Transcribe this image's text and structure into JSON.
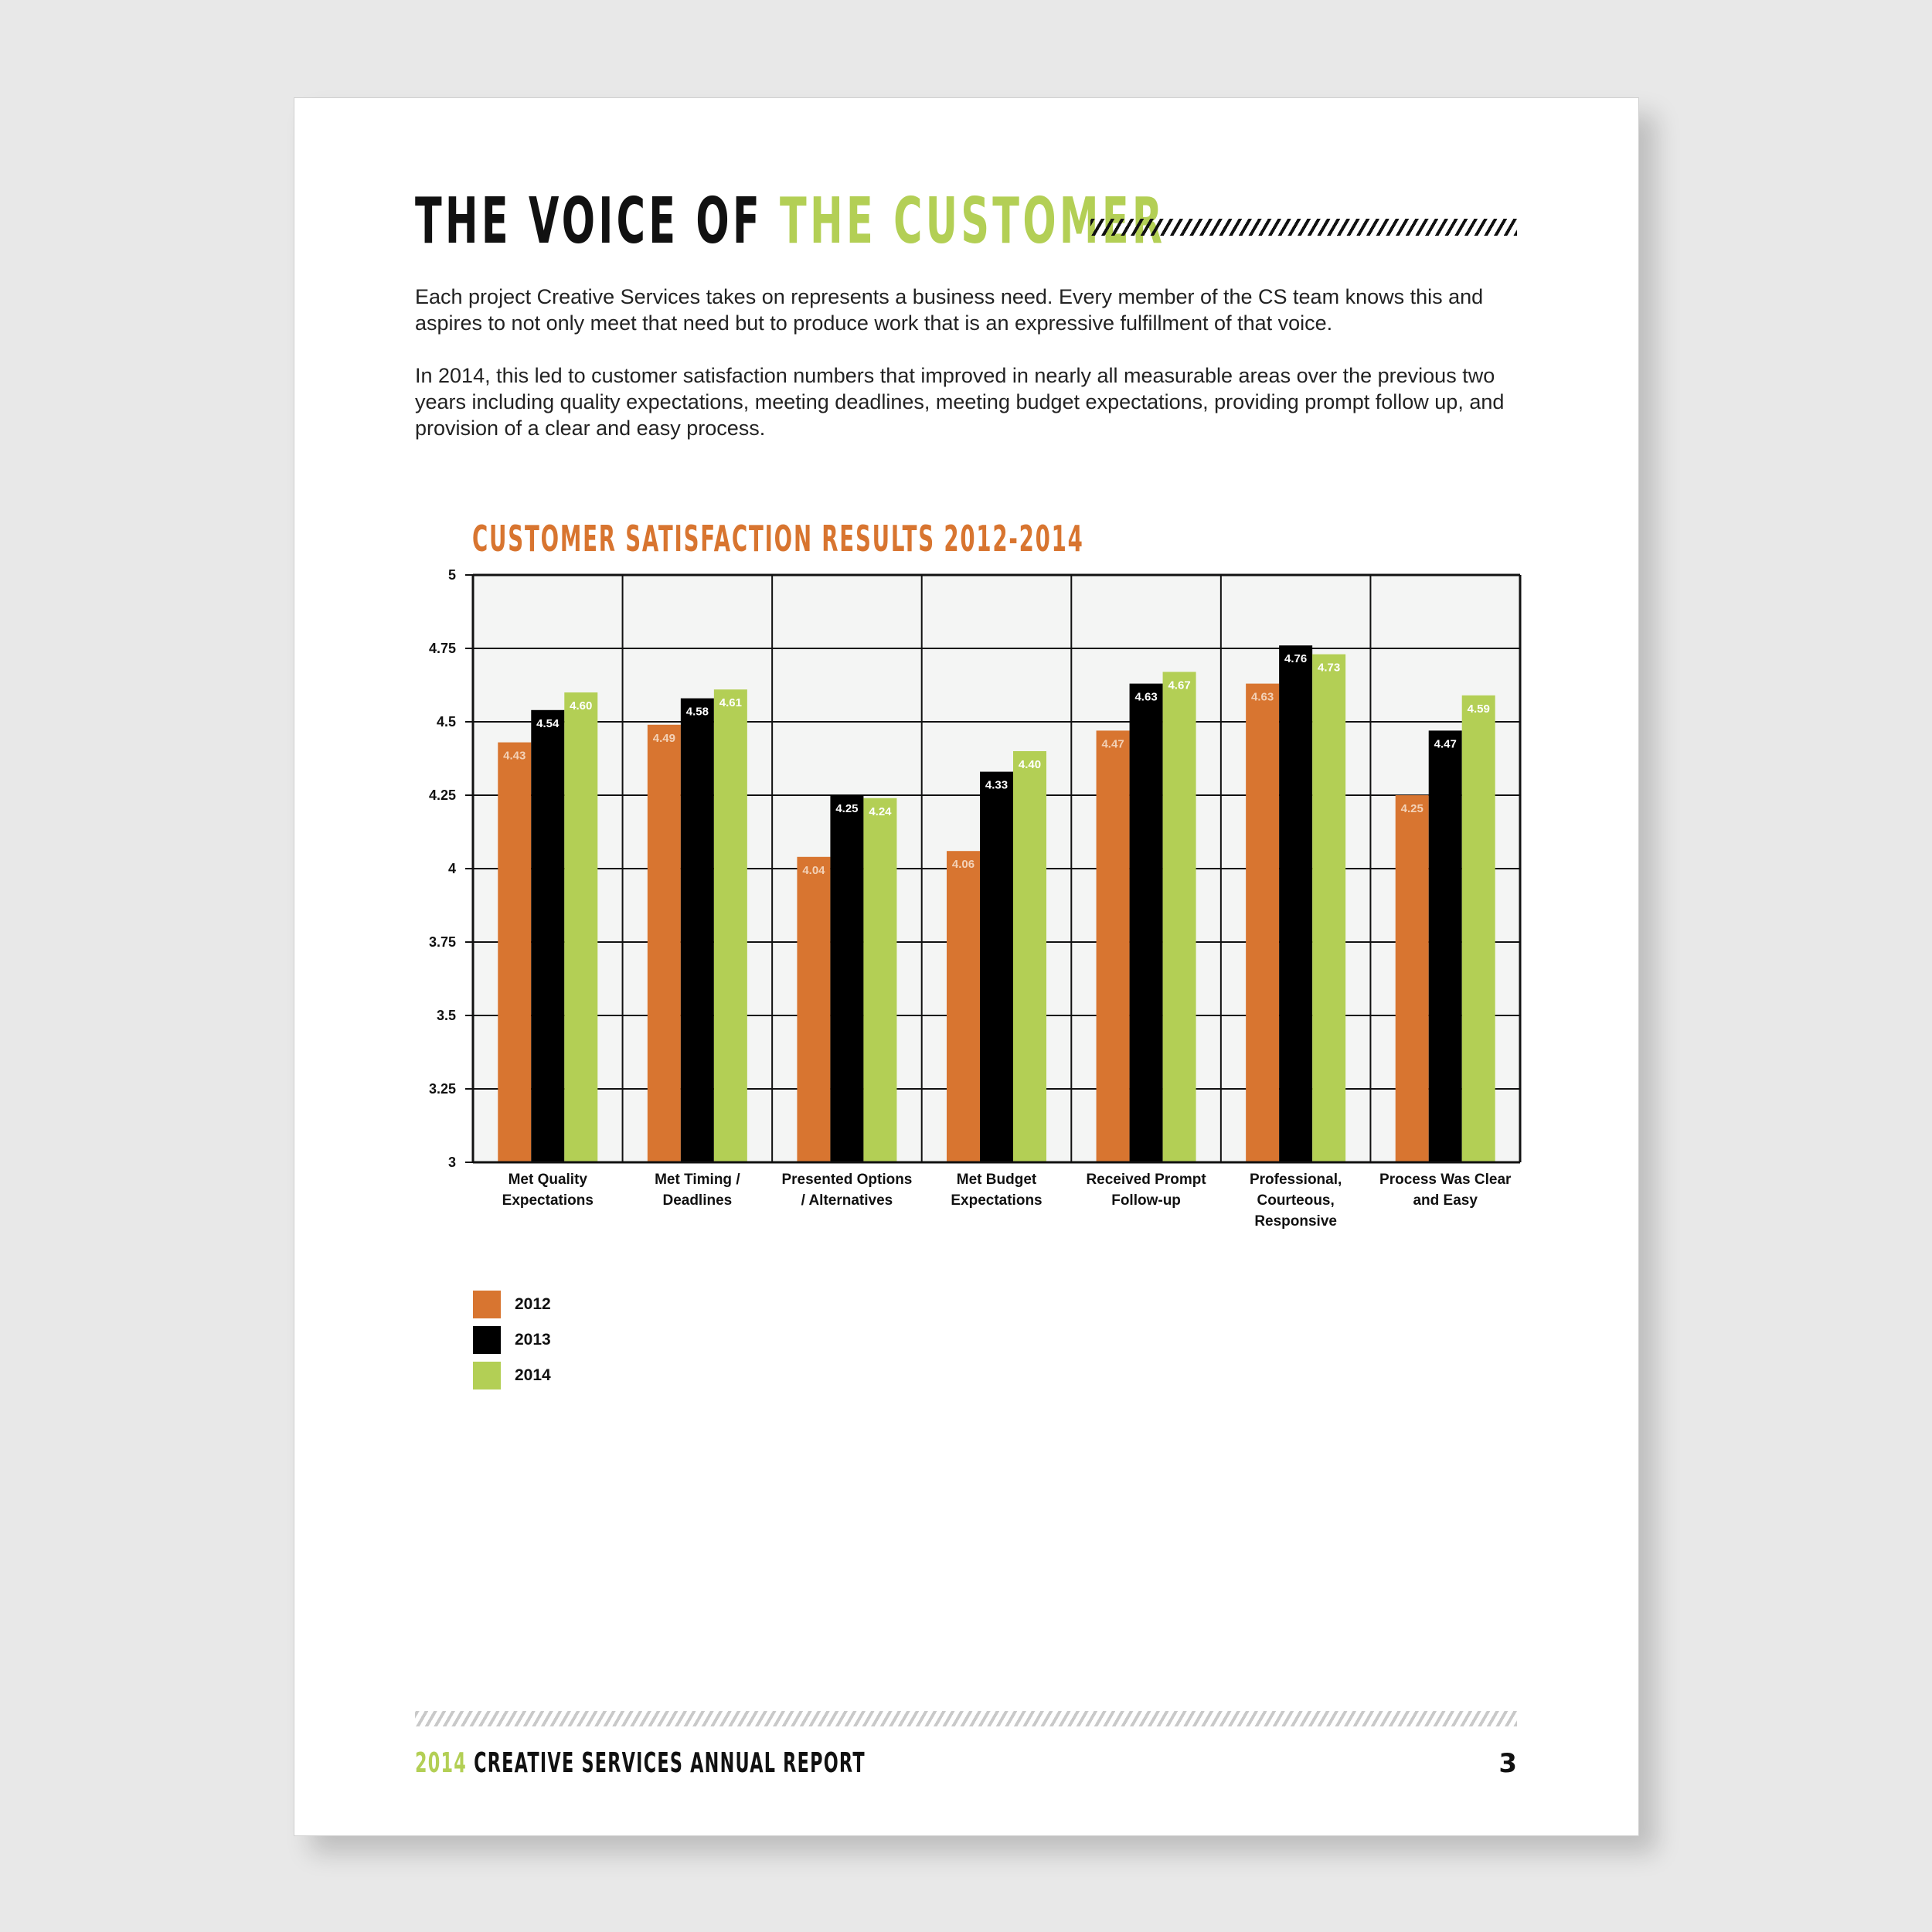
{
  "header": {
    "title_part1": "THE VOICE OF",
    "title_part2": "THE CUSTOMER"
  },
  "body": {
    "paragraph1": "Each project Creative Services takes on represents a business need. Every member of the CS team knows this and aspires to not only meet that need but to produce work that is an expressive fulfillment of that voice.",
    "paragraph2": "In 2014, this led to customer satisfaction numbers that improved in nearly all measurable areas over the previous two years including quality expectations, meeting deadlines, meeting budget expectations, providing prompt follow up, and provision of a clear and easy process."
  },
  "colors": {
    "accent_green": "#b3cf55",
    "accent_orange": "#d87530",
    "series_2012": "#d87530",
    "series_2013": "#000000",
    "series_2014": "#b3cf55",
    "plot_background": "#f4f5f4"
  },
  "chart_data": {
    "type": "bar",
    "title": "CUSTOMER SATISFACTION RESULTS 2012-2014",
    "categories": [
      [
        "Met Quality",
        "Expectations"
      ],
      [
        "Met Timing /",
        "Deadlines"
      ],
      [
        "Presented Options",
        "/ Alternatives"
      ],
      [
        "Met Budget",
        "Expectations"
      ],
      [
        "Received Prompt",
        "Follow-up"
      ],
      [
        "Professional,",
        "Courteous,",
        "Responsive"
      ],
      [
        "Process Was Clear",
        "and Easy"
      ]
    ],
    "series": [
      {
        "name": "2012",
        "color": "#d87530",
        "label_color": "#f3d2b8",
        "values": [
          4.43,
          4.49,
          4.04,
          4.06,
          4.47,
          4.63,
          4.25
        ]
      },
      {
        "name": "2013",
        "color": "#000000",
        "label_color": "#ffffff",
        "values": [
          4.54,
          4.58,
          4.25,
          4.33,
          4.63,
          4.76,
          4.47
        ]
      },
      {
        "name": "2014",
        "color": "#b3cf55",
        "label_color": "#ffffff",
        "values": [
          4.6,
          4.61,
          4.24,
          4.4,
          4.67,
          4.73,
          4.59
        ]
      }
    ],
    "yticks": [
      "3",
      "3.25",
      "3.5",
      "3.75",
      "4",
      "4.25",
      "4.5",
      "4.75",
      "5"
    ],
    "ylim": [
      3,
      5
    ],
    "grid": true,
    "legend_position": "bottom-left",
    "xlabel": "",
    "ylabel": ""
  },
  "legend": {
    "items": [
      {
        "label": "2012",
        "color": "#d87530"
      },
      {
        "label": "2013",
        "color": "#000000"
      },
      {
        "label": "2014",
        "color": "#b3cf55"
      }
    ]
  },
  "footer": {
    "year": "2014",
    "title": "CREATIVE SERVICES ANNUAL REPORT",
    "page_number": "3"
  }
}
